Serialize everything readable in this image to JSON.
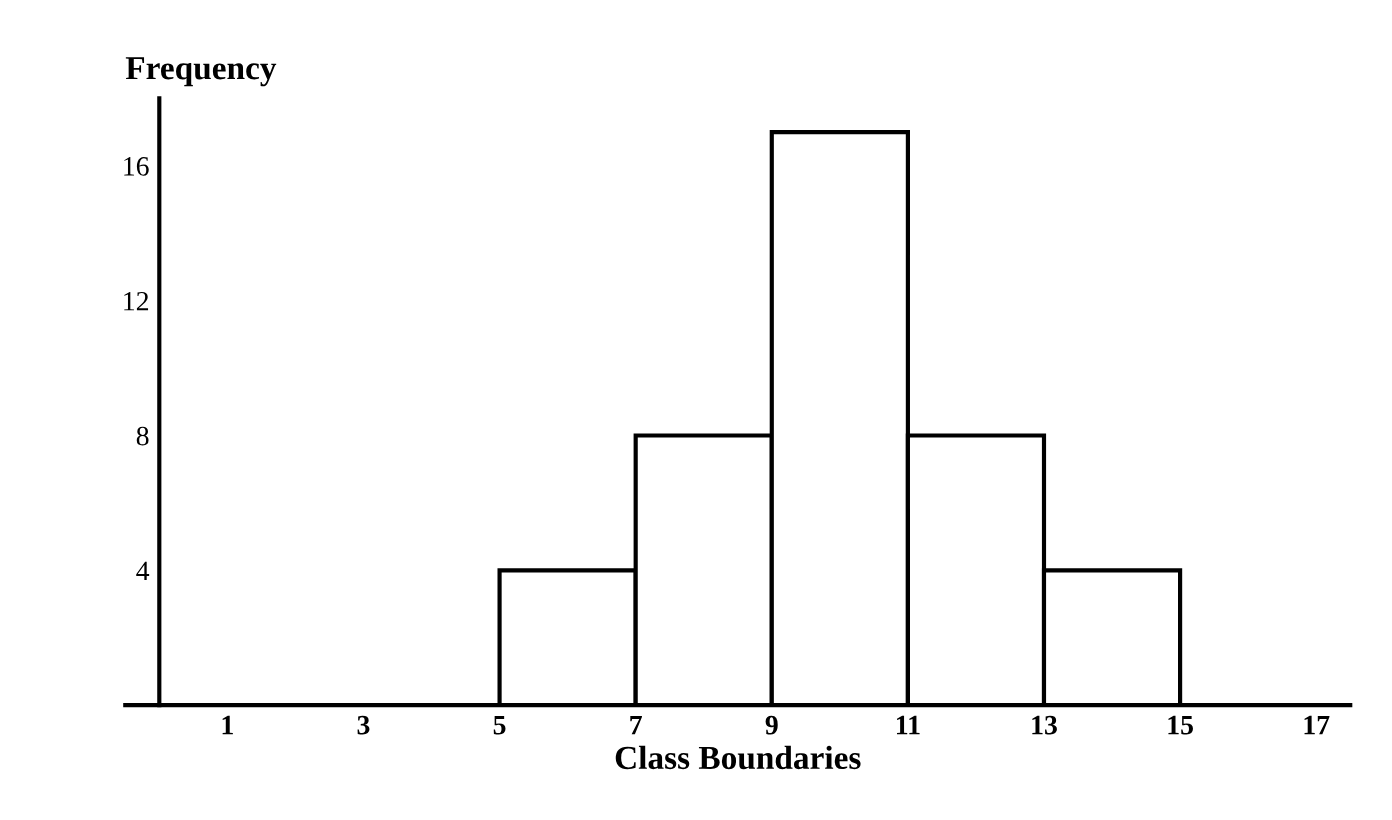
{
  "chart_data": {
    "type": "histogram",
    "xlabel": "Class Boundaries",
    "ylabel": "Frequency",
    "bins": [
      5,
      7,
      9,
      11,
      13,
      15
    ],
    "values": [
      4,
      8,
      17,
      8,
      4
    ],
    "color": "#ffffff",
    "xlim": [
      -0.5,
      17.5
    ],
    "ylim": [
      0,
      18
    ],
    "xticks": [
      1,
      3,
      5,
      7,
      9,
      11,
      13,
      15,
      17
    ],
    "yticks": [
      4,
      8,
      12,
      16
    ],
    "grid": false
  }
}
